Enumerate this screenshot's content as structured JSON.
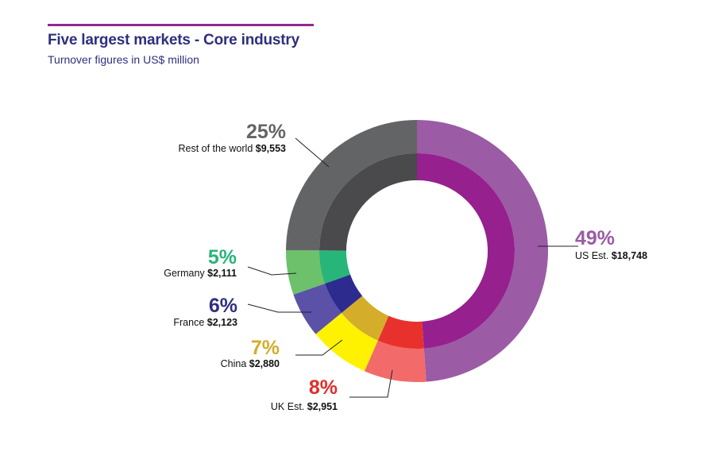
{
  "header": {
    "title": "Five largest markets - Core industry",
    "subtitle": "Turnover figures in US$ million"
  },
  "chart_data": {
    "type": "pie",
    "title": "Five largest markets - Core industry",
    "subtitle": "Turnover figures in US$ million",
    "style": "double-ring donut",
    "slices": [
      {
        "name": "US Est.",
        "value": 18748,
        "value_label": "$18,748",
        "percent_label": "49%",
        "outer_color": "#9b5ba5",
        "inner_color": "#96208e",
        "pct_color": "#9b5ba5"
      },
      {
        "name": "UK Est.",
        "value": 2951,
        "value_label": "$2,951",
        "percent_label": "8%",
        "outer_color": "#f26a6a",
        "inner_color": "#e8312d",
        "pct_color": "#e02d2d"
      },
      {
        "name": "China",
        "value": 2880,
        "value_label": "$2,880",
        "percent_label": "7%",
        "outer_color": "#fff200",
        "inner_color": "#d4ad2a",
        "pct_color": "#d4ad2a"
      },
      {
        "name": "France",
        "value": 2123,
        "value_label": "$2,123",
        "percent_label": "6%",
        "outer_color": "#5b52a8",
        "inner_color": "#2e2b8f",
        "pct_color": "#2e2f7e"
      },
      {
        "name": "Germany",
        "value": 2111,
        "value_label": "$2,111",
        "percent_label": "5%",
        "outer_color": "#6cc16a",
        "inner_color": "#27b57a",
        "pct_color": "#27b57a"
      },
      {
        "name": "Rest of the world",
        "value": 9553,
        "value_label": "$9,553",
        "percent_label": "25%",
        "outer_color": "#636466",
        "inner_color": "#4a4a4c",
        "pct_color": "#636466"
      }
    ]
  }
}
